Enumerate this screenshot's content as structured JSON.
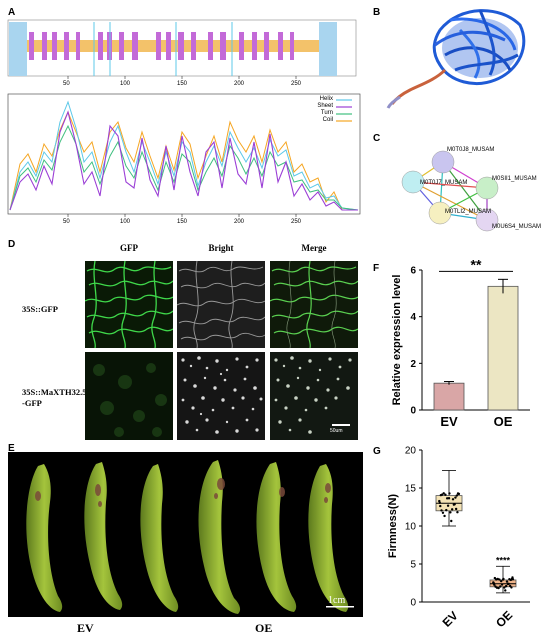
{
  "panels": {
    "A": {
      "label": "A",
      "ticks": [
        "50",
        "100",
        "150",
        "200",
        "250"
      ],
      "legend": [
        "Helix",
        "Sheet",
        "Turn",
        "Coil"
      ],
      "colors": {
        "helix": "#5cc8e8",
        "sheet": "#9b3fd6",
        "turn": "#3fbf7f",
        "coil": "#f5a623"
      }
    },
    "B": {
      "label": "B"
    },
    "C": {
      "label": "C",
      "nodes": [
        "M0T0J8_MUSAM",
        "M0T0J7_MUSAM",
        "M0SII1_MUSAM",
        "M0TLI2_MUSAM",
        "M0U6S4_MUSAM"
      ]
    },
    "D": {
      "label": "D",
      "columns": [
        "GFP",
        "Bright",
        "Merge"
      ],
      "rows": [
        "35S::GFP",
        "35S::MaXTH32.5\n-GFP"
      ],
      "scale": "50um"
    },
    "E": {
      "label": "E",
      "groups": [
        "EV",
        "OE"
      ],
      "scale": "1cm"
    },
    "F": {
      "label": "F"
    },
    "G": {
      "label": "G"
    }
  },
  "chart_data": [
    {
      "panel": "F",
      "type": "bar",
      "categories": [
        "EV",
        "OE"
      ],
      "values": [
        1.15,
        5.3
      ],
      "errors": [
        0.07,
        0.3
      ],
      "ylabel": "Relative expression level",
      "ylim": [
        0,
        6
      ],
      "yticks": [
        "0",
        "2",
        "4",
        "6"
      ],
      "significance": "**",
      "colors": [
        "#d9a6a6",
        "#ece6c3"
      ]
    },
    {
      "panel": "G",
      "type": "box",
      "categories": [
        "EV",
        "OE"
      ],
      "boxes": [
        {
          "min": 10.0,
          "q1": 12.0,
          "median": 13.0,
          "q3": 14.0,
          "max": 17.3
        },
        {
          "min": 1.2,
          "q1": 2.0,
          "median": 2.4,
          "q3": 2.9,
          "max": 4.7
        }
      ],
      "ylabel": "Firmness(N)",
      "ylim": [
        0,
        20
      ],
      "yticks": [
        "0",
        "5",
        "10",
        "15",
        "20"
      ],
      "significance": "****",
      "colors": [
        "#f3e2b5",
        "#f0b48a"
      ]
    }
  ]
}
